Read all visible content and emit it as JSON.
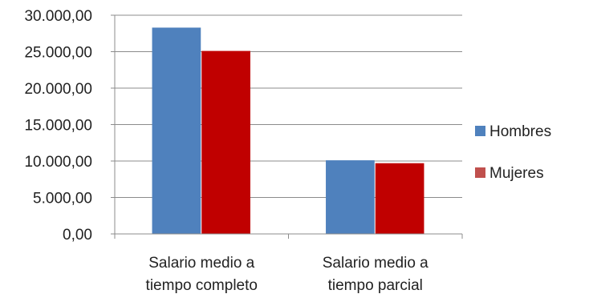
{
  "chart_data": {
    "type": "bar",
    "categories": [
      [
        "Salario medio  a",
        "tiempo completo"
      ],
      [
        "Salario medio  a",
        "tiempo parcial"
      ]
    ],
    "series": [
      {
        "name": "Hombres",
        "values": [
          28300,
          10100
        ],
        "color": "#4f81bd"
      },
      {
        "name": "Mujeres",
        "values": [
          25100,
          9700
        ],
        "color": "#c00000",
        "legend_color": "#c0504d"
      }
    ],
    "y_ticks": [
      "0,00",
      "5.000,00",
      "10.000,00",
      "15.000,00",
      "20.000,00",
      "25.000,00",
      "30.000,00"
    ],
    "ylim": [
      0,
      30000
    ],
    "grid": true,
    "legend_position": "right"
  }
}
